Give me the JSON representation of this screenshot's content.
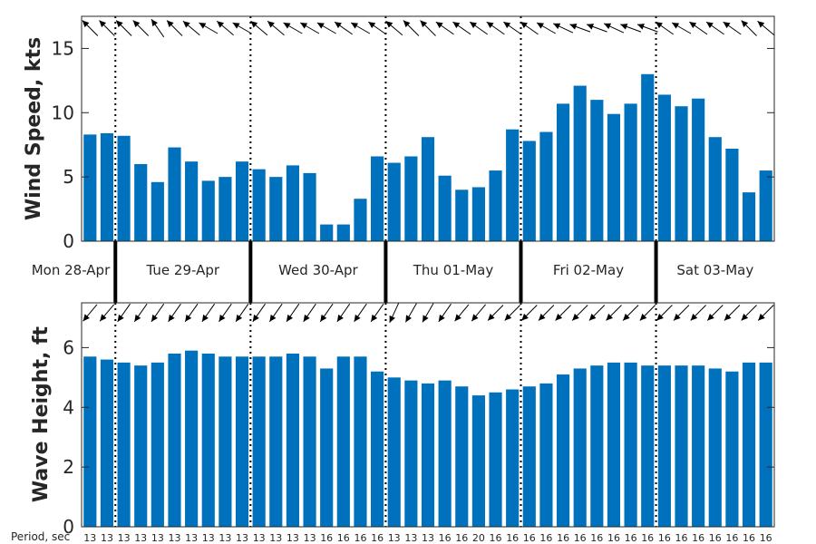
{
  "chart_data": [
    {
      "type": "bar",
      "ylabel": "Wind Speed, kts",
      "ylim": [
        0,
        17.5
      ],
      "yticks": [
        "0",
        "5",
        "10",
        "15"
      ],
      "grid": false,
      "bar_color": "#0072BD",
      "values": [
        8.3,
        8.4,
        8.2,
        6.0,
        4.6,
        7.3,
        6.2,
        4.7,
        5.0,
        6.2,
        5.6,
        5.0,
        5.9,
        5.3,
        1.3,
        1.3,
        3.3,
        6.6,
        6.1,
        6.6,
        8.1,
        5.1,
        4.0,
        4.2,
        5.5,
        8.7,
        7.8,
        8.5,
        10.7,
        12.1,
        11.0,
        9.9,
        10.7,
        13.0,
        11.4,
        10.5,
        11.1,
        8.1,
        7.2,
        3.8,
        5.5
      ],
      "direction_arrows": "wind direction arrows shown above each bar"
    },
    {
      "type": "bar",
      "ylabel": "Wave Height, ft",
      "ylim": [
        0,
        7.5
      ],
      "yticks": [
        "0",
        "2",
        "4",
        "6"
      ],
      "grid": false,
      "bar_color": "#0072BD",
      "values": [
        5.7,
        5.6,
        5.5,
        5.4,
        5.5,
        5.8,
        5.9,
        5.8,
        5.7,
        5.7,
        5.7,
        5.7,
        5.8,
        5.7,
        5.3,
        5.7,
        5.7,
        5.2,
        5.0,
        4.9,
        4.8,
        4.9,
        4.7,
        4.4,
        4.5,
        4.6,
        4.7,
        4.8,
        5.1,
        5.3,
        5.4,
        5.5,
        5.5,
        5.4,
        5.4,
        5.4,
        5.4,
        5.3,
        5.2,
        5.5,
        5.5
      ],
      "period_label": "Period, sec",
      "periods": [
        "13",
        "13",
        "13",
        "13",
        "13",
        "13",
        "13",
        "13",
        "13",
        "13",
        "13",
        "13",
        "13",
        "13",
        "16",
        "16",
        "16",
        "16",
        "13",
        "13",
        "13",
        "16",
        "16",
        "20",
        "16",
        "16",
        "16",
        "16",
        "16",
        "16",
        "16",
        "16",
        "16",
        "16",
        "16",
        "16",
        "16",
        "16",
        "16",
        "16",
        "16"
      ],
      "direction_arrows": "swell direction arrows shown above each bar"
    }
  ],
  "days": [
    "Mon 28-Apr",
    "Tue 29-Apr",
    "Wed 30-Apr",
    "Thu 01-May",
    "Fri 02-May",
    "Sat 03-May"
  ],
  "wind_dirs": [
    135,
    135,
    135,
    135,
    145,
    135,
    130,
    120,
    130,
    120,
    130,
    130,
    120,
    120,
    120,
    125,
    120,
    125,
    130,
    135,
    135,
    125,
    125,
    125,
    125,
    125,
    125,
    120,
    115,
    110,
    110,
    115,
    110,
    110,
    125,
    120,
    125,
    125,
    125,
    135,
    130
  ],
  "wave_dirs": [
    220,
    220,
    215,
    215,
    215,
    215,
    215,
    215,
    215,
    215,
    215,
    215,
    215,
    215,
    215,
    215,
    215,
    215,
    205,
    210,
    210,
    215,
    220,
    220,
    225,
    225,
    225,
    225,
    225,
    225,
    225,
    225,
    225,
    225,
    225,
    225,
    225,
    225,
    225,
    225,
    225
  ]
}
